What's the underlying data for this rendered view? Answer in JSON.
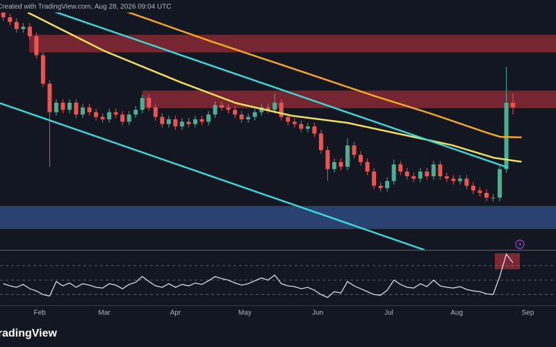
{
  "chart_data": {
    "type": "candlestick",
    "watermark": "Created with TradingView.com, Aug 28, 2026 09:04 UTC",
    "logo": "TradingView",
    "up_color": "#4caf93",
    "down_color": "#ef5350",
    "xlim": [
      0,
      84
    ],
    "ylim": [
      0,
      100
    ],
    "xticks": [
      {
        "value": 6,
        "label": "Feb"
      },
      {
        "value": 15.75,
        "label": "Mar"
      },
      {
        "value": 26.5,
        "label": "Apr"
      },
      {
        "value": 37,
        "label": "May"
      },
      {
        "value": 48,
        "label": "Jun"
      },
      {
        "value": 58.75,
        "label": "Jul"
      },
      {
        "value": 69,
        "label": "Aug"
      },
      {
        "value": 79.75,
        "label": "Sep"
      }
    ],
    "open": [
      100,
      98,
      96,
      93,
      94,
      90,
      82,
      70,
      58,
      62,
      59,
      62,
      57,
      60,
      58,
      56,
      55,
      58,
      57,
      54,
      57,
      59,
      64,
      60,
      56,
      53,
      55,
      52,
      54,
      53,
      55,
      54,
      57,
      61,
      60,
      59,
      57,
      55,
      56,
      58,
      60,
      59,
      62,
      56,
      54,
      53,
      51,
      52,
      49,
      42,
      34,
      37,
      35,
      44,
      40,
      37,
      33,
      27,
      26,
      29,
      36,
      33,
      31,
      30,
      33,
      31,
      36,
      31,
      30,
      29,
      30,
      27,
      25,
      24,
      22,
      22,
      34,
      62
    ],
    "high": [
      101.5,
      99.5,
      97.5,
      95.5,
      95.5,
      91.5,
      83.5,
      71.5,
      63.5,
      63.5,
      63.5,
      63.5,
      61.5,
      61.5,
      59.5,
      57.5,
      59.5,
      59.5,
      58.5,
      58.5,
      60.5,
      65.5,
      65.5,
      61.5,
      57.5,
      56.5,
      56.5,
      55.5,
      55.5,
      56.5,
      56.5,
      58.5,
      62.5,
      62.5,
      61.5,
      60.5,
      58.5,
      57.5,
      59.5,
      61.5,
      61.5,
      66,
      63.5,
      57.5,
      55.5,
      54.5,
      53.5,
      53.5,
      50.5,
      43.5,
      38.5,
      38.5,
      47,
      45.5,
      41.5,
      38.5,
      34.5,
      28.5,
      30.5,
      38,
      37.5,
      34.5,
      32.5,
      34.5,
      34.5,
      37.5,
      37.5,
      32.5,
      31.5,
      31.5,
      31.5,
      28.5,
      26.5,
      25.5,
      23.5,
      35.5,
      77,
      66
    ],
    "low": [
      96.5,
      94.5,
      91.5,
      91.5,
      88.5,
      80.5,
      68.5,
      35,
      56.5,
      57.5,
      57.5,
      55.5,
      55.5,
      56.5,
      54.5,
      53.5,
      53.5,
      55.5,
      52.5,
      52.5,
      55.5,
      57.5,
      58.5,
      54.5,
      51.5,
      51.5,
      50.5,
      50.5,
      51.5,
      51.5,
      52.5,
      52.5,
      55.5,
      58.5,
      57.5,
      55.5,
      53.5,
      53.5,
      54.5,
      56.5,
      57.5,
      57.5,
      54.5,
      52.5,
      51.5,
      49.5,
      49.5,
      47.5,
      40.5,
      29,
      32.5,
      33.5,
      33.5,
      38.5,
      35.5,
      31.5,
      25.5,
      24.5,
      24.5,
      27.5,
      31.5,
      29.5,
      28.5,
      28.5,
      29.5,
      29.5,
      29.5,
      28.5,
      27.5,
      27.5,
      25.5,
      23.5,
      22.5,
      20.5,
      20.5,
      20.5,
      32.5,
      57
    ],
    "close": [
      98,
      96,
      93,
      94,
      90,
      82,
      70,
      58,
      62,
      59,
      62,
      57,
      60,
      58,
      56,
      55,
      58,
      57,
      54,
      57,
      59,
      64,
      60,
      56,
      53,
      55,
      52,
      54,
      53,
      55,
      54,
      57,
      61,
      60,
      59,
      57,
      55,
      56,
      58,
      60,
      59,
      62,
      56,
      54,
      53,
      51,
      52,
      49,
      42,
      34,
      37,
      35,
      44,
      40,
      37,
      33,
      27,
      26,
      29,
      36,
      33,
      31,
      30,
      33,
      31,
      36,
      31,
      30,
      29,
      30,
      27,
      25,
      24,
      22,
      22,
      34,
      62,
      60
    ],
    "zones": [
      {
        "color": "#8e2b35",
        "x": [
          4.4,
          84
        ],
        "from": 83.2,
        "to": 90.6
      },
      {
        "color": "#8e2b35",
        "x": [
          21.5,
          84
        ],
        "from": 59.7,
        "to": 67.1
      },
      {
        "color": "#2f4e85",
        "x": [
          0,
          84
        ],
        "from": 8.8,
        "to": 18.5
      }
    ],
    "overlays": [
      {
        "color": "#f5a623",
        "x": [
          18.9,
          31.5,
          44.1,
          56.7,
          65.1,
          73.5,
          75.6,
          78.8
        ],
        "values": [
          100.6,
          88.2,
          76.5,
          64.7,
          57.4,
          49.4,
          47.6,
          47.4
        ]
      },
      {
        "color": "#f3e05a",
        "x": [
          4.2,
          15.75,
          27.3,
          35.7,
          44.1,
          52.5,
          60.9,
          68.3,
          74.6,
          78.8
        ],
        "values": [
          100,
          83.8,
          70.6,
          61.8,
          56.5,
          53.5,
          48.5,
          44.1,
          38.8,
          37.1
        ]
      },
      {
        "color": "#3cd6d6",
        "x": [
          7.35,
          76.7
        ],
        "values": [
          101.2,
          34.7
        ]
      },
      {
        "color": "#3cd6d6",
        "x": [
          0,
          64.1
        ],
        "values": [
          61.8,
          0
        ]
      }
    ],
    "rsi": {
      "color": "#d6dce8",
      "ylim": [
        15,
        90
      ],
      "levels": [
        30,
        50,
        70
      ],
      "values": [
        45,
        42,
        40,
        44,
        38,
        35,
        30,
        28,
        48,
        42,
        46,
        40,
        45,
        43,
        40,
        39,
        45,
        43,
        38,
        44,
        47,
        55,
        48,
        42,
        40,
        45,
        40,
        44,
        42,
        46,
        44,
        49,
        55,
        52,
        50,
        46,
        43,
        45,
        49,
        53,
        50,
        57,
        45,
        42,
        41,
        38,
        40,
        36,
        30,
        26,
        34,
        32,
        48,
        42,
        38,
        34,
        30,
        29,
        36,
        50,
        44,
        40,
        39,
        45,
        41,
        50,
        42,
        40,
        39,
        41,
        37,
        35,
        34,
        31,
        30,
        55,
        86,
        74
      ]
    }
  }
}
